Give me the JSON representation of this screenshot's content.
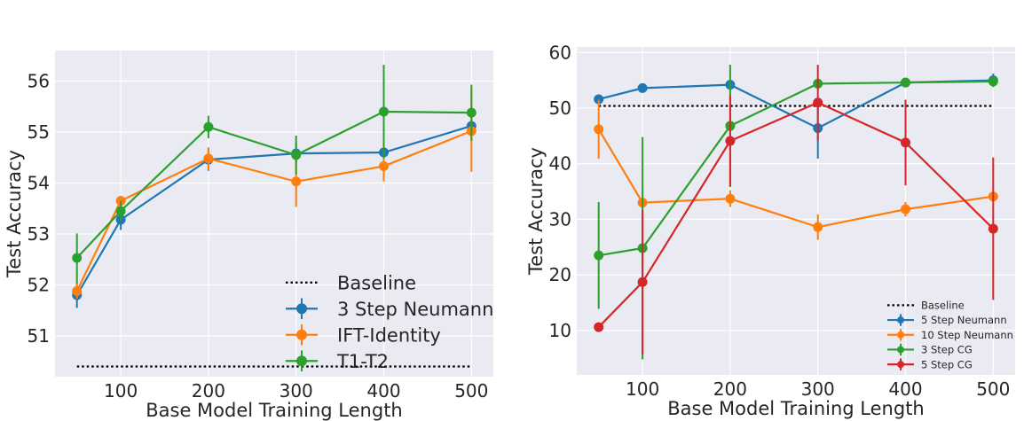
{
  "chart_data": [
    {
      "type": "line",
      "title": "",
      "xlabel": "Base Model Training Length",
      "ylabel": "Test Accuracy",
      "xlim": [
        25,
        525
      ],
      "ylim": [
        50.2,
        56.6
      ],
      "xticks": [
        100,
        200,
        300,
        400,
        500
      ],
      "yticks": [
        51,
        52,
        53,
        54,
        55,
        56
      ],
      "grid": true,
      "legend_position": "bottom-right",
      "baseline": {
        "name": "Baseline",
        "value": 50.4,
        "x": [
          50,
          500
        ]
      },
      "series": [
        {
          "name": "3 Step Neumann",
          "color": "#1f77b4",
          "x": [
            50,
            100,
            200,
            300,
            400,
            500
          ],
          "y": [
            51.8,
            53.28,
            54.46,
            54.58,
            54.6,
            55.12
          ],
          "err": [
            0.25,
            0.2,
            0.22,
            0.2,
            0.2,
            0.15
          ]
        },
        {
          "name": "IFT-Identity",
          "color": "#ff7f0e",
          "x": [
            50,
            100,
            200,
            300,
            400,
            500
          ],
          "y": [
            51.88,
            53.65,
            54.48,
            54.03,
            54.33,
            55.02
          ],
          "err": [
            0.15,
            0.1,
            0.22,
            0.5,
            0.3,
            0.8
          ]
        },
        {
          "name": "T1-T2",
          "color": "#2ca02c",
          "x": [
            50,
            100,
            200,
            300,
            400,
            500
          ],
          "y": [
            52.53,
            53.45,
            55.1,
            54.55,
            55.4,
            55.38
          ],
          "err": [
            0.48,
            0.2,
            0.22,
            0.38,
            0.92,
            0.55
          ]
        }
      ]
    },
    {
      "type": "line",
      "title": "",
      "xlabel": "Base Model Training Length",
      "ylabel": "Test Accuracy",
      "xlim": [
        25,
        525
      ],
      "ylim": [
        2,
        61
      ],
      "xticks": [
        100,
        200,
        300,
        400,
        500
      ],
      "yticks": [
        10,
        20,
        30,
        40,
        50,
        60
      ],
      "grid": true,
      "legend_position": "bottom-right",
      "baseline": {
        "name": "Baseline",
        "value": 50.4,
        "x": [
          50,
          500
        ]
      },
      "series": [
        {
          "name": "5 Step Neumann",
          "color": "#1f77b4",
          "x": [
            50,
            100,
            200,
            300,
            400,
            500
          ],
          "y": [
            51.6,
            53.6,
            54.2,
            46.4,
            54.6,
            55.0
          ],
          "err": [
            0.5,
            0.4,
            0.5,
            5.5,
            0.6,
            1.2
          ]
        },
        {
          "name": "10 Step Neumann",
          "color": "#ff7f0e",
          "x": [
            50,
            100,
            200,
            300,
            400,
            500
          ],
          "y": [
            46.2,
            33.0,
            33.7,
            28.6,
            31.8,
            34.1
          ],
          "err": [
            5.3,
            1.0,
            1.5,
            2.3,
            1.3,
            1.0
          ]
        },
        {
          "name": "3 Step CG",
          "color": "#2ca02c",
          "x": [
            50,
            100,
            200,
            300,
            400,
            500
          ],
          "y": [
            23.5,
            24.8,
            46.8,
            54.4,
            54.6,
            54.8
          ],
          "err": [
            9.6,
            20.0,
            11.0,
            1.0,
            0.5,
            0.5
          ]
        },
        {
          "name": "5 Step CG",
          "color": "#d62728",
          "x": [
            50,
            100,
            200,
            300,
            400,
            500
          ],
          "y": [
            10.6,
            18.7,
            44.1,
            51.0,
            43.8,
            28.3
          ],
          "err": [
            0.5,
            13.0,
            8.2,
            6.8,
            7.7,
            12.8
          ]
        }
      ]
    }
  ]
}
